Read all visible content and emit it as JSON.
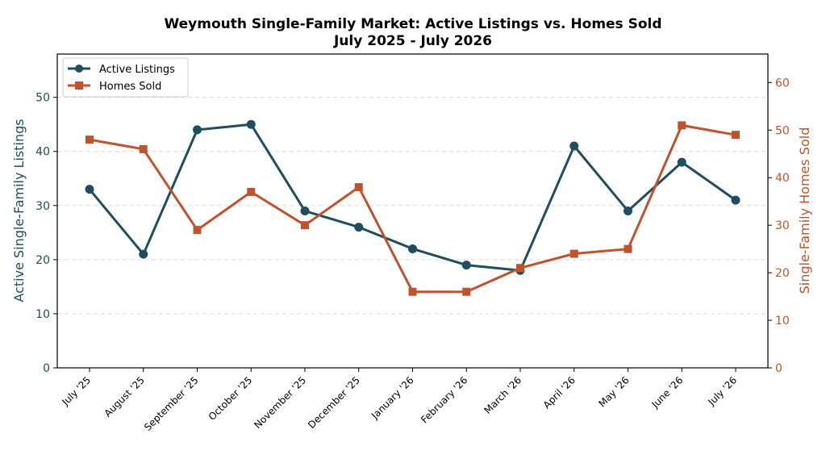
{
  "chart_data": {
    "type": "line",
    "title": "Weymouth Single-Family Market: Active Listings vs. Homes Sold",
    "subtitle": "July 2025 - July 2026",
    "categories": [
      "July '25",
      "August '25",
      "September '25",
      "October '25",
      "November '25",
      "December '25",
      "January '26",
      "February '26",
      "March '26",
      "April '26",
      "May '26",
      "June '26",
      "July '26"
    ],
    "series": [
      {
        "name": "Active Listings",
        "axis": "left",
        "color": "#1f4e5f",
        "marker": "circle",
        "values": [
          33,
          21,
          44,
          45,
          29,
          26,
          22,
          19,
          18,
          41,
          29,
          38,
          31
        ]
      },
      {
        "name": "Homes Sold",
        "axis": "right",
        "color": "#c0532b",
        "marker": "square",
        "values": [
          48,
          46,
          29,
          37,
          30,
          38,
          16,
          16,
          21,
          24,
          25,
          51,
          49
        ]
      }
    ],
    "ylabel": "Active Single-Family Listings",
    "ylabel_right": "Single-Family Homes Sold",
    "ylim": [
      0,
      58
    ],
    "ylim_right": [
      0,
      66
    ],
    "yticks": [
      0,
      10,
      20,
      30,
      40,
      50
    ],
    "yticks_right": [
      0,
      10,
      20,
      30,
      40,
      50,
      60
    ],
    "grid": "horizontal dashed",
    "legend": "top-left"
  }
}
